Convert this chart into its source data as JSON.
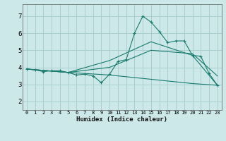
{
  "xlabel": "Humidex (Indice chaleur)",
  "bg_color": "#cce8e8",
  "grid_color": "#aacfcf",
  "line_color": "#1a7a6e",
  "xlim": [
    -0.5,
    23.5
  ],
  "ylim": [
    1.5,
    7.7
  ],
  "xticks": [
    0,
    1,
    2,
    3,
    4,
    5,
    6,
    7,
    8,
    9,
    10,
    11,
    12,
    13,
    14,
    15,
    16,
    17,
    18,
    19,
    20,
    21,
    22,
    23
  ],
  "yticks": [
    2,
    3,
    4,
    5,
    6,
    7
  ],
  "lines": [
    {
      "x": [
        0,
        1,
        2,
        3,
        4,
        5,
        6,
        7,
        8,
        9,
        10,
        11,
        12,
        13,
        14,
        15,
        16,
        17,
        18,
        19,
        20,
        21,
        22,
        23
      ],
      "y": [
        3.9,
        3.85,
        3.75,
        3.8,
        3.8,
        3.7,
        3.55,
        3.6,
        3.5,
        3.1,
        3.6,
        4.35,
        4.45,
        6.0,
        7.0,
        6.65,
        6.1,
        5.45,
        5.55,
        5.55,
        4.7,
        4.65,
        3.65,
        2.95
      ],
      "has_markers": true
    },
    {
      "x": [
        0,
        5,
        10,
        15,
        20,
        23
      ],
      "y": [
        3.9,
        3.7,
        4.4,
        5.5,
        4.7,
        2.95
      ],
      "has_markers": false
    },
    {
      "x": [
        0,
        5,
        10,
        15,
        20,
        23
      ],
      "y": [
        3.9,
        3.7,
        4.0,
        5.0,
        4.8,
        3.5
      ],
      "has_markers": false
    },
    {
      "x": [
        0,
        5,
        10,
        15,
        20,
        23
      ],
      "y": [
        3.9,
        3.7,
        3.55,
        3.3,
        3.05,
        2.95
      ],
      "has_markers": false
    }
  ],
  "figsize": [
    3.2,
    2.0
  ],
  "dpi": 100
}
